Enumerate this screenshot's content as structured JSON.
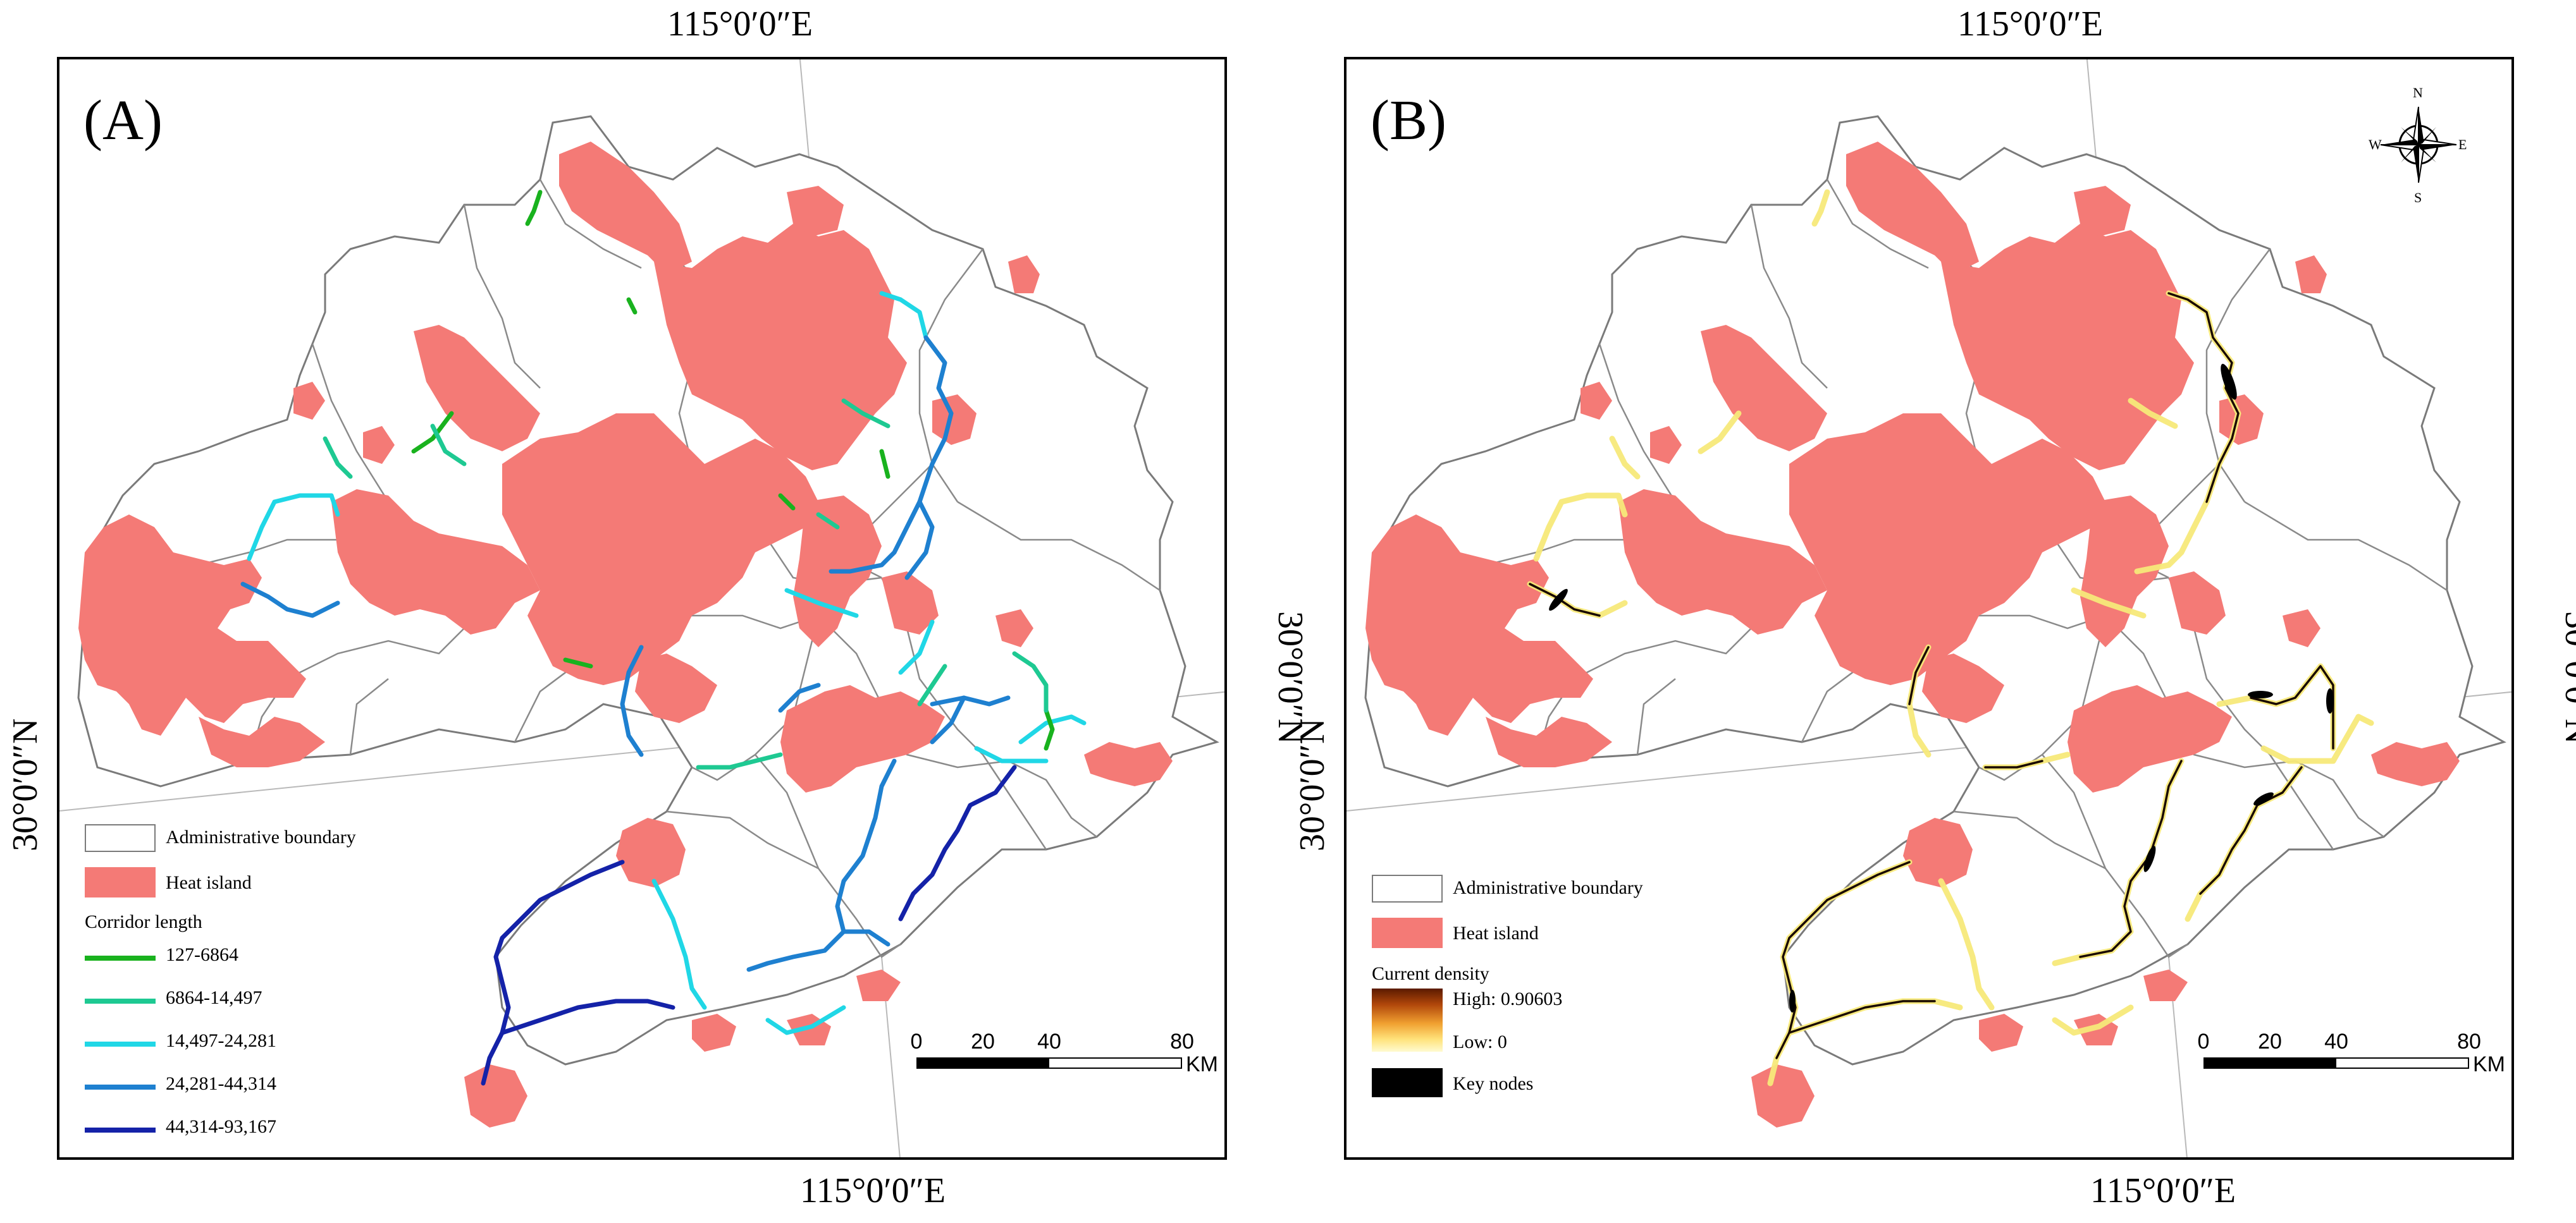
{
  "coords": {
    "lon": "115°0′0″E",
    "lat": "30°0′0″N"
  },
  "panels": [
    {
      "letter": "(A)",
      "legend": {
        "boundary": "Administrative boundary",
        "heat": "Heat island",
        "corridor_title": "Corridor length",
        "corridor_classes": [
          {
            "label": "127-6864",
            "color": "#19b21e"
          },
          {
            "label": "6864-14,497",
            "color": "#1ec992"
          },
          {
            "label": "14,497-24,281",
            "color": "#20d7e6"
          },
          {
            "label": "24,281-44,314",
            "color": "#1e80d0"
          },
          {
            "label": "44,314-93,167",
            "color": "#1422a8"
          }
        ]
      },
      "scale": {
        "ticks": [
          "0",
          "20",
          "40",
          "80"
        ],
        "unit": "KM"
      }
    },
    {
      "letter": "(B)",
      "legend": {
        "boundary": "Administrative boundary",
        "heat": "Heat island",
        "density_title": "Current density",
        "high": "High: 0.90603",
        "low": "Low: 0",
        "key_nodes": "Key nodes"
      },
      "scale": {
        "ticks": [
          "0",
          "20",
          "40",
          "80"
        ],
        "unit": "KM"
      },
      "compass": {
        "n": "N",
        "s": "S",
        "e": "E",
        "w": "W"
      }
    }
  ],
  "colors": {
    "heat_island": "#f47a76",
    "boundary": "#8a8a8a",
    "graticule": "#b9b9b9",
    "density_high": "#5a1a00",
    "density_low": "#fffbd0",
    "key_nodes": "#000000"
  }
}
